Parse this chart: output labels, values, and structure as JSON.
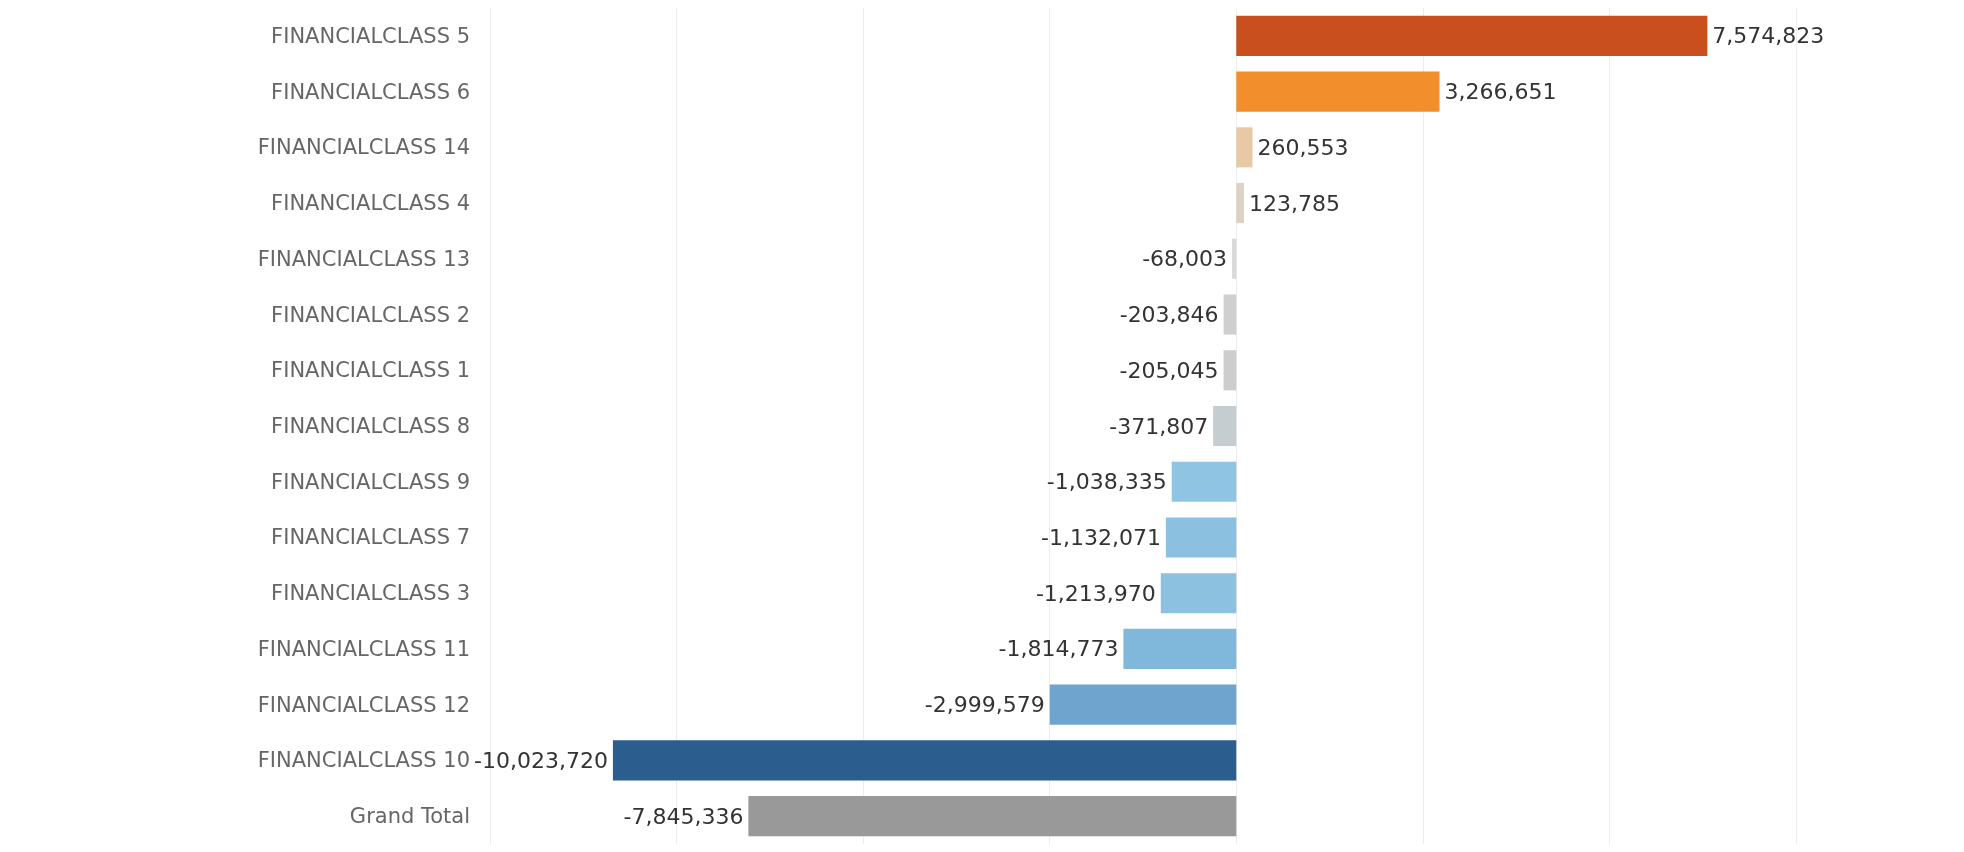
{
  "chart_data": {
    "type": "bar",
    "orientation": "horizontal",
    "categories": [
      "FINANCIALCLASS 5",
      "FINANCIALCLASS 6",
      "FINANCIALCLASS 14",
      "FINANCIALCLASS 4",
      "FINANCIALCLASS 13",
      "FINANCIALCLASS 2",
      "FINANCIALCLASS 1",
      "FINANCIALCLASS 8",
      "FINANCIALCLASS 9",
      "FINANCIALCLASS 7",
      "FINANCIALCLASS 3",
      "FINANCIALCLASS 11",
      "FINANCIALCLASS 12",
      "FINANCIALCLASS 10",
      "Grand Total"
    ],
    "values": [
      7574823,
      3266651,
      260553,
      123785,
      -68003,
      -203846,
      -205045,
      -371807,
      -1038335,
      -1132071,
      -1213970,
      -1814773,
      -2999579,
      -10023720,
      -7845336
    ],
    "value_labels": [
      "7,574,823",
      "3,266,651",
      "260,553",
      "123,785",
      "-68,003",
      "-203,846",
      "-205,045",
      "-371,807",
      "-1,038,335",
      "-1,132,071",
      "-1,213,970",
      "-1,814,773",
      "-2,999,579",
      "-10,023,720",
      "-7,845,336"
    ],
    "colors": [
      "#c94f1f",
      "#f28e2b",
      "#e8c9a6",
      "#ddd3c4",
      "#d9d9d9",
      "#cfcfcf",
      "#cdcdcd",
      "#c5cdd0",
      "#8fc4e3",
      "#8bc0e0",
      "#8cc1df",
      "#80b8dc",
      "#6fa4cf",
      "#2b5d8f",
      "#999999"
    ],
    "grid": "x",
    "tick_labels": false
  }
}
